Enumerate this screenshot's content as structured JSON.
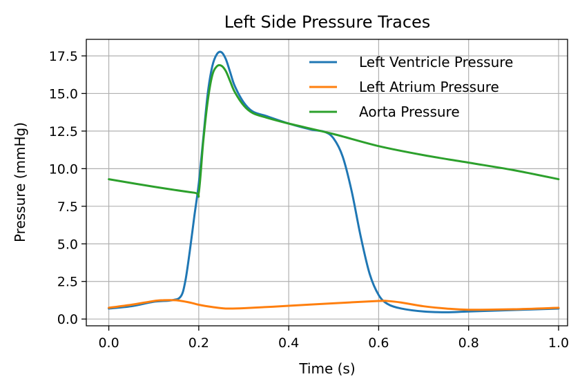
{
  "chart_data": {
    "type": "line",
    "title": "Left Side Pressure Traces",
    "xlabel": "Time (s)",
    "ylabel": "Pressure (mmHg)",
    "xlim": [
      -0.05,
      1.02
    ],
    "ylim": [
      -0.45,
      18.6
    ],
    "xticks": [
      0.0,
      0.2,
      0.4,
      0.6,
      0.8,
      1.0
    ],
    "xtick_labels": [
      "0.0",
      "0.2",
      "0.4",
      "0.6",
      "0.8",
      "1.0"
    ],
    "yticks": [
      0.0,
      2.5,
      5.0,
      7.5,
      10.0,
      12.5,
      15.0,
      17.5
    ],
    "ytick_labels": [
      "0.0",
      "2.5",
      "5.0",
      "7.5",
      "10.0",
      "12.5",
      "15.0",
      "17.5"
    ],
    "grid": true,
    "legend_position": "top-right",
    "series": [
      {
        "name": "Left Ventricle Pressure",
        "color": "#1f77b4",
        "x": [
          0.0,
          0.05,
          0.1,
          0.14,
          0.16,
          0.17,
          0.18,
          0.19,
          0.2,
          0.21,
          0.22,
          0.23,
          0.24,
          0.25,
          0.26,
          0.27,
          0.28,
          0.3,
          0.32,
          0.35,
          0.4,
          0.45,
          0.48,
          0.5,
          0.52,
          0.54,
          0.56,
          0.58,
          0.6,
          0.62,
          0.65,
          0.7,
          0.75,
          0.8,
          0.9,
          1.0
        ],
        "y": [
          0.7,
          0.85,
          1.15,
          1.25,
          1.5,
          2.5,
          4.5,
          6.8,
          9.0,
          12.0,
          15.0,
          16.8,
          17.6,
          17.75,
          17.3,
          16.4,
          15.5,
          14.4,
          13.8,
          13.5,
          13.0,
          12.6,
          12.45,
          12.0,
          10.8,
          8.5,
          5.5,
          3.0,
          1.6,
          1.0,
          0.7,
          0.5,
          0.45,
          0.5,
          0.6,
          0.7
        ]
      },
      {
        "name": "Left Atrium Pressure",
        "color": "#ff7f0e",
        "x": [
          0.0,
          0.05,
          0.1,
          0.12,
          0.15,
          0.18,
          0.2,
          0.23,
          0.26,
          0.3,
          0.4,
          0.5,
          0.6,
          0.62,
          0.65,
          0.7,
          0.75,
          0.8,
          0.9,
          1.0
        ],
        "y": [
          0.75,
          0.95,
          1.2,
          1.25,
          1.25,
          1.1,
          0.95,
          0.8,
          0.7,
          0.72,
          0.88,
          1.05,
          1.2,
          1.2,
          1.1,
          0.85,
          0.7,
          0.62,
          0.65,
          0.75
        ]
      },
      {
        "name": "Aorta Pressure",
        "color": "#2ca02c",
        "x": [
          0.0,
          0.1,
          0.19,
          0.2,
          0.21,
          0.22,
          0.23,
          0.24,
          0.25,
          0.26,
          0.27,
          0.28,
          0.3,
          0.32,
          0.35,
          0.4,
          0.5,
          0.6,
          0.7,
          0.8,
          0.9,
          1.0
        ],
        "y": [
          9.3,
          8.8,
          8.4,
          8.4,
          11.8,
          14.5,
          16.2,
          16.8,
          16.85,
          16.5,
          15.8,
          15.1,
          14.2,
          13.7,
          13.4,
          13.0,
          12.3,
          11.5,
          10.9,
          10.4,
          9.9,
          9.3
        ]
      }
    ]
  }
}
